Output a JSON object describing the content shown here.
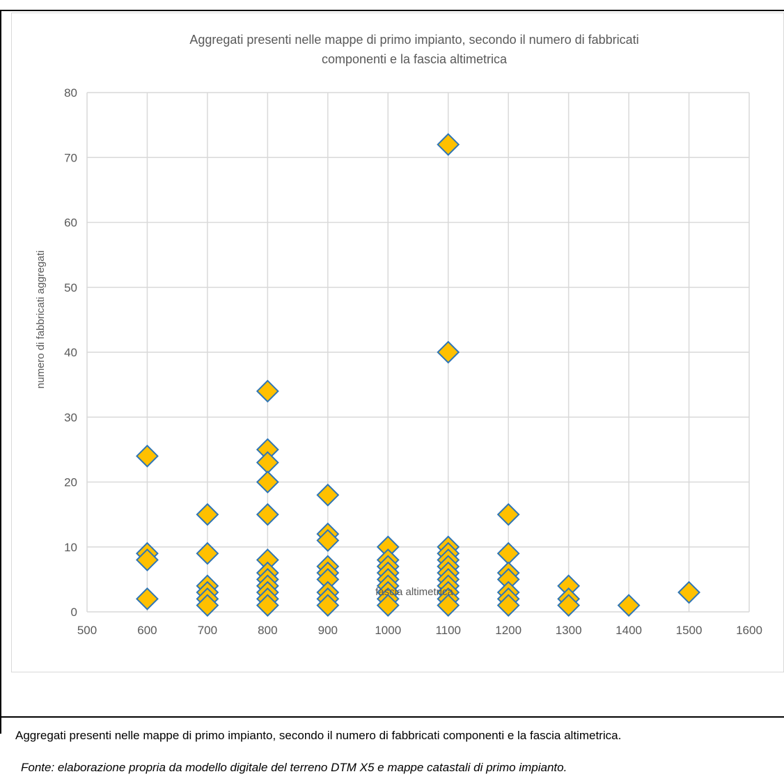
{
  "caption": "Aggregati presenti nelle mappe di primo impianto, secondo il numero di fabbricati componenti e la fascia altimetrica.",
  "source": "Fonte: elaborazione propria da modello digitale del terreno DTM X5 e mappe catastali di primo impianto.",
  "colors": {
    "marker_fill": "#FFC000",
    "marker_stroke": "#2E75B6",
    "grid": "#D9D9D9",
    "text": "#595959"
  },
  "chart_data": {
    "type": "scatter",
    "title_lines": [
      "Aggregati presenti nelle mappe di primo impianto, secondo il numero di fabbricati",
      "componenti e la fascia altimetrica"
    ],
    "xlabel": "fascia altimetrica",
    "ylabel": "numero di fabbricati aggregati",
    "xlim": [
      500,
      1600
    ],
    "ylim": [
      0,
      80
    ],
    "xticks": [
      "500",
      "600",
      "700",
      "800",
      "900",
      "1000",
      "1100",
      "1200",
      "1300",
      "1400",
      "1500",
      "1600"
    ],
    "yticks": [
      "0",
      "10",
      "20",
      "30",
      "40",
      "50",
      "60",
      "70",
      "80"
    ],
    "grid": true,
    "marker": "diamond",
    "points": [
      [
        600,
        24
      ],
      [
        600,
        9
      ],
      [
        600,
        8
      ],
      [
        600,
        2
      ],
      [
        700,
        15
      ],
      [
        700,
        9
      ],
      [
        700,
        4
      ],
      [
        700,
        3
      ],
      [
        700,
        2
      ],
      [
        700,
        1
      ],
      [
        800,
        34
      ],
      [
        800,
        25
      ],
      [
        800,
        23
      ],
      [
        800,
        20
      ],
      [
        800,
        15
      ],
      [
        800,
        8
      ],
      [
        800,
        6
      ],
      [
        800,
        5
      ],
      [
        800,
        4
      ],
      [
        800,
        3
      ],
      [
        800,
        2
      ],
      [
        800,
        1
      ],
      [
        900,
        18
      ],
      [
        900,
        12
      ],
      [
        900,
        11
      ],
      [
        900,
        7
      ],
      [
        900,
        6
      ],
      [
        900,
        5
      ],
      [
        900,
        3
      ],
      [
        900,
        2
      ],
      [
        900,
        1
      ],
      [
        1000,
        10
      ],
      [
        1000,
        8
      ],
      [
        1000,
        7
      ],
      [
        1000,
        6
      ],
      [
        1000,
        5
      ],
      [
        1000,
        4
      ],
      [
        1000,
        3
      ],
      [
        1000,
        2
      ],
      [
        1000,
        1
      ],
      [
        1100,
        72
      ],
      [
        1100,
        40
      ],
      [
        1100,
        10
      ],
      [
        1100,
        9
      ],
      [
        1100,
        8
      ],
      [
        1100,
        7
      ],
      [
        1100,
        6
      ],
      [
        1100,
        5
      ],
      [
        1100,
        4
      ],
      [
        1100,
        3
      ],
      [
        1100,
        2
      ],
      [
        1100,
        1
      ],
      [
        1200,
        15
      ],
      [
        1200,
        9
      ],
      [
        1200,
        6
      ],
      [
        1200,
        5
      ],
      [
        1200,
        3
      ],
      [
        1200,
        2
      ],
      [
        1200,
        1
      ],
      [
        1300,
        4
      ],
      [
        1300,
        2
      ],
      [
        1300,
        1
      ],
      [
        1400,
        1
      ],
      [
        1500,
        3
      ]
    ]
  }
}
